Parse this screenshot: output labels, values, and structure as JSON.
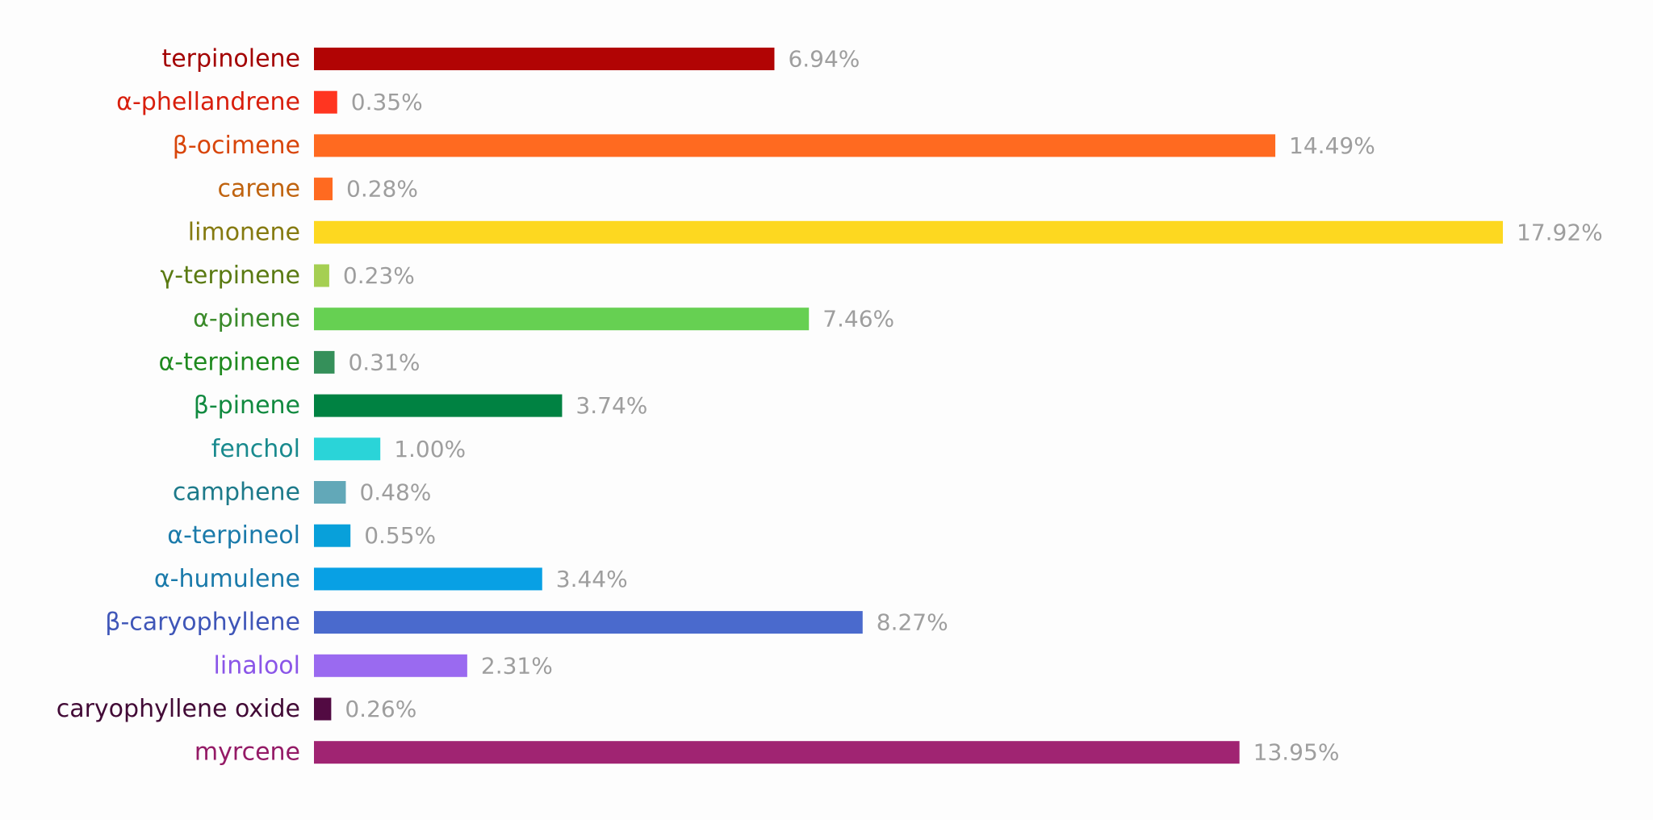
{
  "chart_data": {
    "type": "bar",
    "orientation": "horizontal",
    "title": "",
    "xlabel": "",
    "ylabel": "",
    "xlim": [
      0,
      17.92
    ],
    "grid": false,
    "legend": "none",
    "value_suffix": "%",
    "categories": [
      {
        "label": "terpinolene",
        "value": 6.94,
        "display": "6.94%",
        "bar_color": "#b10404",
        "label_color": "#a30000"
      },
      {
        "label": "α-phellandrene",
        "value": 0.35,
        "display": "0.35%",
        "bar_color": "#ff3520",
        "label_color": "#d81e0c"
      },
      {
        "label": "β-ocimene",
        "value": 14.49,
        "display": "14.49%",
        "bar_color": "#ff6a20",
        "label_color": "#d8450a"
      },
      {
        "label": "carene",
        "value": 0.28,
        "display": "0.28%",
        "bar_color": "#ff6a20",
        "label_color": "#c06410"
      },
      {
        "label": "limonene",
        "value": 17.92,
        "display": "17.92%",
        "bar_color": "#fdd820",
        "label_color": "#857a10"
      },
      {
        "label": "γ-terpinene",
        "value": 0.23,
        "display": "0.23%",
        "bar_color": "#a5cf52",
        "label_color": "#5a7a12"
      },
      {
        "label": "α-pinene",
        "value": 7.46,
        "display": "7.46%",
        "bar_color": "#66d052",
        "label_color": "#3a8a2a"
      },
      {
        "label": "α-terpinene",
        "value": 0.31,
        "display": "0.31%",
        "bar_color": "#35905a",
        "label_color": "#1f8a1f"
      },
      {
        "label": "β-pinene",
        "value": 3.74,
        "display": "3.74%",
        "bar_color": "#008242",
        "label_color": "#118a40"
      },
      {
        "label": "fenchol",
        "value": 1.0,
        "display": "1.00%",
        "bar_color": "#2ad4d8",
        "label_color": "#198a8e"
      },
      {
        "label": "camphene",
        "value": 0.48,
        "display": "0.48%",
        "bar_color": "#62a8b8",
        "label_color": "#1d7a8a"
      },
      {
        "label": "α-terpineol",
        "value": 0.55,
        "display": "0.55%",
        "bar_color": "#08a0da",
        "label_color": "#1a7aaa"
      },
      {
        "label": "α-humulene",
        "value": 3.44,
        "display": "3.44%",
        "bar_color": "#08a0e4",
        "label_color": "#1a7aaa"
      },
      {
        "label": "β-caryophyllene",
        "value": 8.27,
        "display": "8.27%",
        "bar_color": "#4a6acd",
        "label_color": "#3f56b8"
      },
      {
        "label": "linalool",
        "value": 2.31,
        "display": "2.31%",
        "bar_color": "#9a6af0",
        "label_color": "#8a55e8"
      },
      {
        "label": "caryophyllene oxide",
        "value": 0.26,
        "display": "0.26%",
        "bar_color": "#520a42",
        "label_color": "#420a36"
      },
      {
        "label": "myrcene",
        "value": 13.95,
        "display": "13.95%",
        "bar_color": "#a02472",
        "label_color": "#941a66"
      }
    ]
  }
}
